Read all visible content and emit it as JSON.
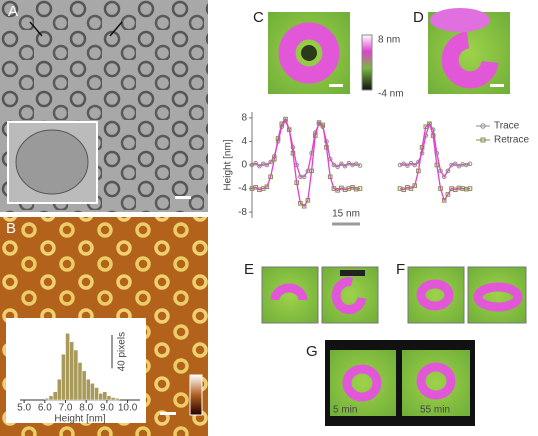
{
  "panels": {
    "a": "A",
    "b": "B",
    "c": "C",
    "d": "D",
    "e": "E",
    "f": "F",
    "g": "G"
  },
  "colorbar": {
    "max": "8 nm",
    "min": "-4 nm"
  },
  "timestamps": [
    "5 min",
    "55 min"
  ],
  "chart_data": [
    {
      "type": "histogram",
      "xlabel": "Height [nm]",
      "bins": [
        6.0,
        6.2,
        6.4,
        6.6,
        6.8,
        7.0,
        7.2,
        7.4,
        7.6,
        7.8,
        8.0,
        8.2,
        8.4,
        8.6,
        8.8,
        9.0,
        9.2,
        9.4,
        9.6
      ],
      "values": [
        2,
        5,
        10,
        25,
        55,
        80,
        70,
        60,
        45,
        35,
        25,
        20,
        15,
        8,
        10,
        5,
        3,
        2
      ],
      "color": "#a89a5a",
      "xlim": [
        4.8,
        10.6
      ],
      "xticks": [
        {
          "value": 5,
          "label": "5.0"
        },
        {
          "value": 6,
          "label": "6.0"
        },
        {
          "value": 7,
          "label": "7.0"
        },
        {
          "value": 8,
          "label": "8.0"
        },
        {
          "value": 9,
          "label": "9.0"
        },
        {
          "value": 10,
          "label": "10.0"
        }
      ],
      "ylim": [
        0,
        90
      ],
      "scale_bar": {
        "value": 40,
        "label": "40 pixels"
      }
    },
    {
      "type": "line",
      "ylabel": "Height [nm]",
      "x": [
        0,
        2,
        4,
        6,
        8,
        10,
        12,
        14,
        16,
        18,
        20,
        22,
        24,
        26,
        28,
        30,
        32,
        34,
        36,
        38,
        40,
        42,
        44,
        46,
        48,
        50,
        52,
        54,
        56,
        58
      ],
      "xlim": [
        0,
        58
      ],
      "ylim": [
        -9,
        9
      ],
      "yticks": [
        8,
        4,
        0,
        -4,
        -8
      ],
      "scale_bar": {
        "value": 15,
        "label": "15 nm"
      },
      "series": [
        {
          "name": "Trace",
          "color": "#e040d0",
          "marker_color": "#8f8f85",
          "values": [
            0,
            0.3,
            -0.2,
            0.2,
            0,
            0.5,
            1.5,
            4,
            6.5,
            7.5,
            6,
            3,
            0,
            -2,
            -2,
            -1,
            2,
            5.5,
            7,
            6.5,
            4,
            1,
            0,
            -0.3,
            0.2,
            -0.2,
            0.3,
            0,
            0.2,
            -0.1
          ]
        },
        {
          "name": "Retrace",
          "color": "#e040d0",
          "marker_color": "#8a8a50",
          "values": [
            -4,
            -3.8,
            -4.2,
            -4,
            -3.7,
            -2,
            1,
            4.5,
            7,
            7.8,
            6,
            2,
            -3,
            -6.5,
            -7,
            -6,
            -1,
            5,
            7.2,
            6.8,
            3,
            -2,
            -4,
            -4.3,
            -3.9,
            -4.2,
            -4,
            -3.8,
            -4.1,
            -4
          ]
        }
      ]
    },
    {
      "type": "line",
      "x": [
        0,
        2,
        4,
        6,
        8,
        10,
        12,
        14,
        16,
        18,
        20,
        22,
        24,
        26,
        28,
        30,
        32,
        34,
        36,
        38
      ],
      "xlim": [
        0,
        38
      ],
      "ylim": [
        -9,
        9
      ],
      "legend": "upper right",
      "series": [
        {
          "name": "Trace",
          "color": "#e040d0",
          "marker_color": "#8f8f85",
          "values": [
            0,
            0.2,
            -0.1,
            0.3,
            0,
            0.5,
            2,
            5,
            7,
            6,
            2,
            -1,
            -2,
            -1,
            0,
            0.2,
            -0.2,
            0.1,
            0,
            0.2
          ]
        },
        {
          "name": "Retrace",
          "color": "#e040d0",
          "marker_color": "#8a8a50",
          "values": [
            -4,
            -4.2,
            -3.8,
            -4,
            -3.5,
            -1,
            3,
            6.5,
            7,
            5,
            0,
            -4,
            -6,
            -5,
            -4,
            -4.2,
            -3.9,
            -4,
            -4.1,
            -4
          ]
        }
      ]
    }
  ]
}
